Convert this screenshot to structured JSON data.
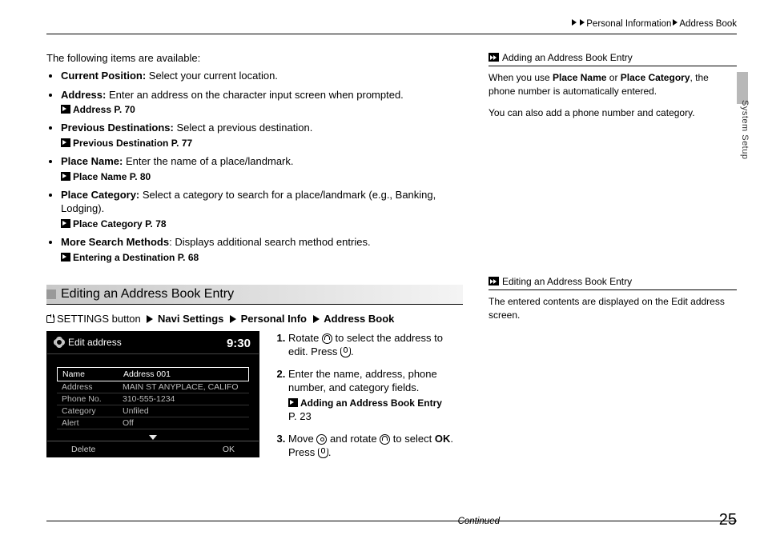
{
  "breadcrumb": {
    "a": "Personal Information",
    "b": "Address Book"
  },
  "intro": "The following items are available:",
  "items": [
    {
      "term": "Current Position:",
      "desc": " Select your current location."
    },
    {
      "term": "Address:",
      "desc": " Enter an address on the character input screen when prompted.",
      "xref": "Address",
      "page": "P. 70"
    },
    {
      "term": "Previous Destinations:",
      "desc": " Select a previous destination.",
      "xref": "Previous Destination",
      "page": "P. 77"
    },
    {
      "term": "Place Name:",
      "desc": " Enter the name of a place/landmark.",
      "xref": "Place Name",
      "page": "P. 80"
    },
    {
      "term": "Place Category:",
      "desc": " Select a category to search for a place/landmark (e.g., Banking, Lodging).",
      "xref": "Place Category",
      "page": "P. 78"
    },
    {
      "term": "More Search Methods",
      "desc": ": Displays additional search method entries.",
      "xref": "Entering a Destination",
      "page": "P. 68"
    }
  ],
  "section_title": "Editing an Address Book Entry",
  "path": {
    "pre": "SETTINGS button",
    "p1": "Navi Settings",
    "p2": "Personal Info",
    "p3": "Address Book"
  },
  "screen": {
    "title": "Edit address",
    "time": "9:30",
    "rows": [
      {
        "key": "Name",
        "val": "Address 001",
        "hl": true
      },
      {
        "key": "Address",
        "val": "MAIN ST ANYPLACE, CALIFO"
      },
      {
        "key": "Phone No.",
        "val": "310-555-1234"
      },
      {
        "key": "Category",
        "val": "Unfiled"
      },
      {
        "key": "Alert",
        "val": "Off"
      }
    ],
    "btn_left": "Delete",
    "btn_right": "OK"
  },
  "steps": {
    "s1a": "Rotate ",
    "s1b": " to select the address to edit. Press ",
    "s1c": ".",
    "s2": "Enter the name, address, phone number, and category fields.",
    "s2xref": "Adding an Address Book Entry",
    "s2page": "P. 23",
    "s3a": "Move ",
    "s3b": " and rotate ",
    "s3c": " to select ",
    "s3ok": "OK",
    "s3d": ". Press ",
    "s3e": "."
  },
  "notes": {
    "n1_title": "Adding an Address Book Entry",
    "n1_line1a": "When you use ",
    "n1_pn": "Place Name",
    "n1_or": " or ",
    "n1_pc": "Place Category",
    "n1_line1b": ", the phone number is automatically entered.",
    "n1_line2": "You can also add a phone number and category.",
    "n2_title": "Editing an Address Book Entry",
    "n2_body": "The entered contents are displayed on the Edit address screen."
  },
  "side_label": "System Setup",
  "continued": "Continued",
  "page_num": "25"
}
